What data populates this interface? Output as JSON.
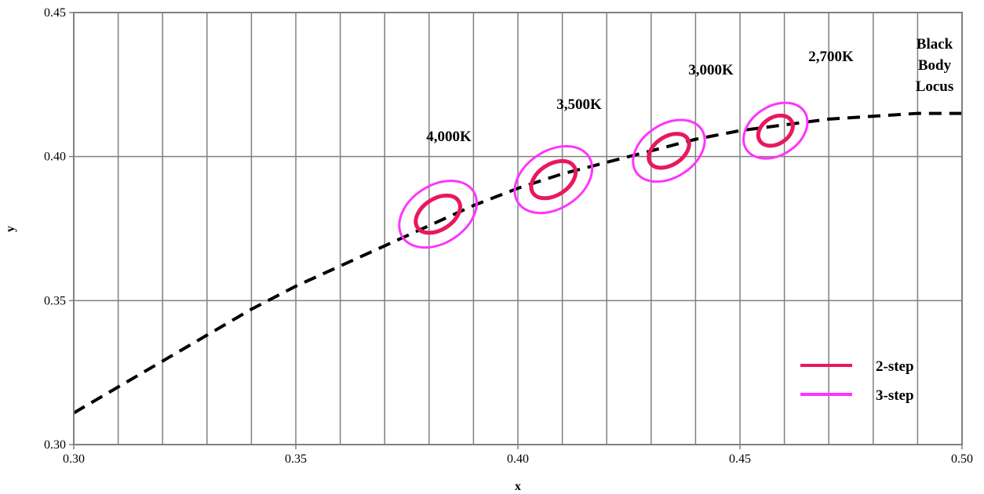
{
  "chart_data": {
    "type": "line",
    "xlabel": "x",
    "ylabel": "y",
    "xlim": [
      0.3,
      0.5
    ],
    "ylim": [
      0.3,
      0.45
    ],
    "x_ticks": [
      "0.30",
      "0.35",
      "0.40",
      "0.45",
      "0.50"
    ],
    "y_ticks": [
      "0.30",
      "0.35",
      "0.40",
      "0.45"
    ],
    "x_tick_values": [
      0.3,
      0.35,
      0.4,
      0.45,
      0.5
    ],
    "y_tick_values": [
      0.3,
      0.35,
      0.4,
      0.45
    ],
    "vertical_gridlines_x": [
      0.31,
      0.32,
      0.33,
      0.34,
      0.35,
      0.36,
      0.37,
      0.38,
      0.39,
      0.4,
      0.41,
      0.42,
      0.43,
      0.44,
      0.45,
      0.46,
      0.47,
      0.48,
      0.49
    ],
    "horizontal_gridlines_y": [
      0.35,
      0.4
    ],
    "grid": true,
    "legend_position": "bottom-right",
    "colors": {
      "two_step": "#e8185f",
      "three_step": "#ff33ff",
      "locus": "#000000"
    },
    "locus": {
      "label_lines": [
        "Black",
        "Body",
        "Locus"
      ],
      "x": [
        0.3,
        0.31,
        0.32,
        0.33,
        0.34,
        0.35,
        0.36,
        0.37,
        0.38,
        0.39,
        0.4,
        0.41,
        0.42,
        0.43,
        0.44,
        0.45,
        0.46,
        0.47,
        0.48,
        0.49,
        0.5
      ],
      "y": [
        0.311,
        0.32,
        0.329,
        0.338,
        0.347,
        0.355,
        0.362,
        0.369,
        0.376,
        0.383,
        0.389,
        0.394,
        0.398,
        0.402,
        0.406,
        0.409,
        0.411,
        0.413,
        0.414,
        0.415,
        0.415
      ]
    },
    "series": [
      {
        "name": "2-step",
        "color": "#e8185f"
      },
      {
        "name": "3-step",
        "color": "#ff33ff"
      }
    ],
    "ellipses": [
      {
        "label": "4,000K",
        "cx": 0.382,
        "cy": 0.38,
        "two_step": {
          "a": 0.0055,
          "b": 0.0035
        },
        "three_step": {
          "a": 0.0095,
          "b": 0.0065
        }
      },
      {
        "label": "3,500K",
        "cx": 0.408,
        "cy": 0.392,
        "two_step": {
          "a": 0.0055,
          "b": 0.0035
        },
        "three_step": {
          "a": 0.0095,
          "b": 0.0065
        }
      },
      {
        "label": "3,000K",
        "cx": 0.434,
        "cy": 0.402,
        "two_step": {
          "a": 0.005,
          "b": 0.0032
        },
        "three_step": {
          "a": 0.0088,
          "b": 0.006
        }
      },
      {
        "label": "2,700K",
        "cx": 0.458,
        "cy": 0.409,
        "two_step": {
          "a": 0.0042,
          "b": 0.003
        },
        "three_step": {
          "a": 0.0078,
          "b": 0.0055
        }
      }
    ]
  }
}
